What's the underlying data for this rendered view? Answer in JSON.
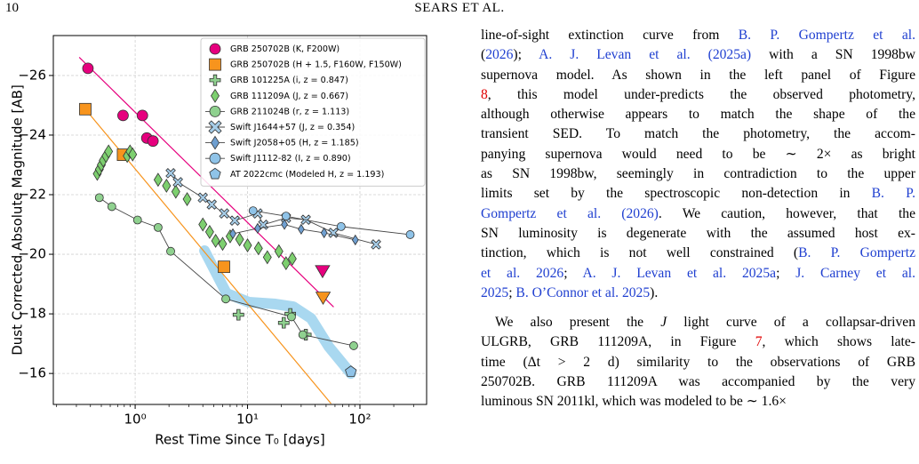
{
  "header": {
    "page": "10",
    "running_title": "SEARS ET AL."
  },
  "chart_data": {
    "type": "scatter",
    "xlabel": "Rest Time Since T₀ [days]",
    "ylabel": "Dust Corrected Absolute Magnitude [AB]",
    "xscale": "log",
    "xlim": [
      0.187,
      392
    ],
    "xticks": [
      {
        "value": 1,
        "label": "10⁰"
      },
      {
        "value": 10,
        "label": "10¹"
      },
      {
        "value": 100,
        "label": "10²"
      }
    ],
    "ylim": [
      -14.96,
      -27.34
    ],
    "yticks": [
      {
        "value": -26,
        "label": "−26"
      },
      {
        "value": -24,
        "label": "−24"
      },
      {
        "value": -22,
        "label": "−22"
      },
      {
        "value": -20,
        "label": "−20"
      },
      {
        "value": -18,
        "label": "−18"
      },
      {
        "value": -16,
        "label": "−16"
      }
    ],
    "grid": true,
    "legend": "upper right",
    "lines": [
      {
        "color": "#a9d8f0",
        "width": 12,
        "x": [
          4.14,
          6.5,
          10.3,
          17.7,
          25.5,
          36.7,
          52.8,
          83
        ],
        "values": [
          -20.12,
          -18.69,
          -18.39,
          -18.33,
          -18.24,
          -17.85,
          -16.9,
          -16.0
        ]
      },
      {
        "color": "#e6007e",
        "width": 1.2,
        "x": [
          0.32,
          58
        ],
        "values": [
          -26.6,
          -18.24
        ]
      },
      {
        "color": "#f7941d",
        "width": 1.2,
        "x": [
          0.36,
          55
        ],
        "values": [
          -24.87,
          -15.0
        ]
      }
    ],
    "series": [
      {
        "name": "GRB 250702B (K, F200W)",
        "color": "#e6007e",
        "marker": "circle",
        "line": false,
        "x": [
          0.38,
          0.78,
          1.16,
          1.27,
          1.44
        ],
        "values": [
          -26.24,
          -24.66,
          -24.66,
          -23.9,
          -23.8
        ],
        "limit_x": [
          46.5
        ],
        "limit_values": [
          -19.43
        ]
      },
      {
        "name": "GRB 250702B (H + 1.5, F160W, F150W)",
        "color": "#f7941d",
        "marker": "square",
        "line": false,
        "x": [
          0.36,
          0.78,
          6.17
        ],
        "values": [
          -24.87,
          -23.34,
          -19.58
        ],
        "limit_x": [
          47
        ],
        "limit_values": [
          -18.54
        ]
      },
      {
        "name": "GRB 101225A (i, z = 0.847)",
        "color": "#8fd18f",
        "marker": "plus",
        "line": false,
        "x": [
          8.3,
          21,
          24,
          33
        ],
        "values": [
          -17.97,
          -17.7,
          -18.0,
          -17.3
        ]
      },
      {
        "name": "GRB 111209A (J, z = 0.667)",
        "color": "#7dcf6f",
        "marker": "diamond",
        "line": false,
        "x": [
          0.46,
          0.48,
          0.5,
          0.52,
          0.55,
          0.58,
          0.85,
          0.9,
          0.95,
          1.6,
          1.9,
          2.3,
          2.9,
          4.0,
          4.6,
          5.2,
          6.0,
          7.0,
          8.5,
          10.0,
          12.5,
          15.0,
          19.0,
          22.0,
          25.0
        ],
        "values": [
          -22.7,
          -22.85,
          -23.0,
          -23.15,
          -23.3,
          -23.45,
          -23.3,
          -23.45,
          -23.35,
          -22.5,
          -22.3,
          -22.1,
          -21.85,
          -21.0,
          -20.75,
          -20.45,
          -20.35,
          -20.6,
          -20.5,
          -20.3,
          -20.2,
          -19.9,
          -20.1,
          -19.7,
          -19.85
        ]
      },
      {
        "name": "GRB 211024B (r, z = 1.113)",
        "color": "#8fd18f",
        "marker": "circle",
        "line": true,
        "x": [
          0.48,
          0.62,
          1.05,
          1.6,
          2.07,
          6.4,
          24.6,
          31,
          88
        ],
        "values": [
          -21.9,
          -21.6,
          -21.15,
          -20.9,
          -20.1,
          -18.5,
          -17.9,
          -17.3,
          -16.93
        ]
      },
      {
        "name": "Swift J1644+57 (J, z = 0.354)",
        "color": "#a6cde8",
        "marker": "x",
        "line": true,
        "x": [
          2.07,
          2.4,
          4.0,
          4.8,
          6.2,
          7.7,
          12.3,
          13.8,
          22,
          33,
          58,
          139
        ],
        "values": [
          -22.72,
          -22.42,
          -21.9,
          -21.67,
          -21.37,
          -21.13,
          -21.37,
          -20.99,
          -21.22,
          -21.16,
          -20.72,
          -20.33
        ]
      },
      {
        "name": "Swift J2058+05 (H, z = 1.185)",
        "color": "#6f9fd0",
        "marker": "diamond",
        "line": true,
        "x": [
          7.4,
          12.3,
          21.3,
          30,
          48,
          91
        ],
        "values": [
          -20.69,
          -20.87,
          -21.0,
          -20.84,
          -20.72,
          -20.48
        ]
      },
      {
        "name": "Swift J1112-82 (I, z = 0.890)",
        "color": "#8fc3e8",
        "marker": "circle",
        "line": true,
        "x": [
          11.2,
          22,
          68,
          280
        ],
        "values": [
          -21.46,
          -21.28,
          -20.93,
          -20.66
        ]
      },
      {
        "name": "AT 2022cmc (Modeled H, z = 1.193)",
        "color": "#8fc3e8",
        "marker": "pentagon",
        "line": false,
        "x": [
          83
        ],
        "values": [
          -16.06
        ]
      }
    ]
  },
  "text": {
    "paragraphs": [
      {
        "lines": [
          [
            "line-of-sight extinction curve from ",
            {
              "cite": "B. P. Gompertz et al."
            }
          ],
          [
            "(",
            {
              "cite": "2026"
            },
            "); ",
            {
              "cite": "A. J. Levan et al. (2025a)"
            },
            " with a SN 1998bw"
          ],
          [
            "supernova model. As shown in the left panel of Figure"
          ],
          [
            {
              "ref": "8"
            },
            ", this model under-predicts the observed photometry,"
          ],
          [
            "although otherwise appears to match the shape of the"
          ],
          [
            "transient SED. To match the photometry, the accom-"
          ],
          [
            "panying supernova would need to be ∼ 2× as bright"
          ],
          [
            "as SN 1998bw, seemingly in contradiction to the upper"
          ],
          [
            "limits set by the spectroscopic non-detection in ",
            {
              "cite": "B. P."
            }
          ],
          [
            {
              "cite": "Gompertz et al. (2026)"
            },
            ". We caution, however, that the"
          ],
          [
            "SN luminosity is degenerate with the assumed host ex-"
          ],
          [
            "tinction, which is not well constrained (",
            {
              "cite": "B. P. Gompertz"
            }
          ],
          [
            {
              "cite": "et al. 2026"
            },
            "; ",
            {
              "cite": "A. J. Levan et al. 2025a"
            },
            "; ",
            {
              "cite": "J. Carney et al."
            }
          ],
          [
            {
              "cite": "2025"
            },
            "; ",
            {
              "cite": "B. O’Connor et al. 2025"
            },
            ")."
          ]
        ]
      },
      {
        "lines": [
          [
            "We also present the ",
            {
              "em": "J"
            },
            " light curve of a collapsar-driven"
          ],
          [
            "ULGRB, GRB 111209A, in Figure ",
            {
              "ref": "7"
            },
            ", which shows late-"
          ],
          [
            "time (Δt > 2 d) similarity to the observations of GRB"
          ],
          [
            "250702B. GRB 111209A was accompanied by the very"
          ],
          [
            "luminous SN 2011kl, which was modeled to be ∼ 1.6×"
          ]
        ]
      }
    ]
  }
}
